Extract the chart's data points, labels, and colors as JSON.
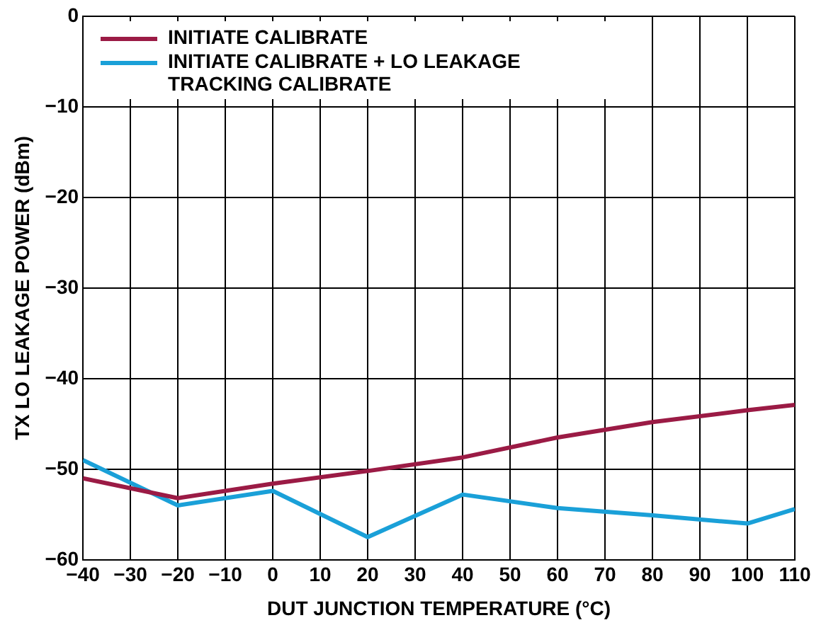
{
  "chart_data": {
    "type": "line",
    "xlabel": "DUT JUNCTION TEMPERATURE (°C)",
    "ylabel": "TX LO LEAKAGE POWER (dBm)",
    "x": [
      -40,
      -20,
      0,
      20,
      40,
      60,
      80,
      100,
      110
    ],
    "series": [
      {
        "name": "INITIATE CALIBRATE",
        "color": "#9b1b45",
        "values": [
          -51,
          -53.2,
          -51.6,
          -50.2,
          -48.7,
          -46.5,
          -44.8,
          -43.5,
          -42.9
        ]
      },
      {
        "name": "INITIATE CALIBRATE + LO LEAKAGE TRACKING CALIBRATE",
        "color": "#1aa0d8",
        "values": [
          -49,
          -54,
          -52.4,
          -57.5,
          -52.8,
          -54.3,
          -55.1,
          -56,
          -54.4
        ]
      }
    ],
    "xlim": [
      -40,
      110
    ],
    "xticks": [
      -40,
      -30,
      -20,
      -10,
      0,
      10,
      20,
      30,
      40,
      50,
      60,
      70,
      80,
      90,
      100,
      110
    ],
    "ylim": [
      -60,
      0
    ],
    "yticks": [
      -60,
      -50,
      -40,
      -30,
      -20,
      -10,
      0
    ],
    "grid": true,
    "legend": "top left",
    "marker": "none",
    "line_style": "solid"
  }
}
